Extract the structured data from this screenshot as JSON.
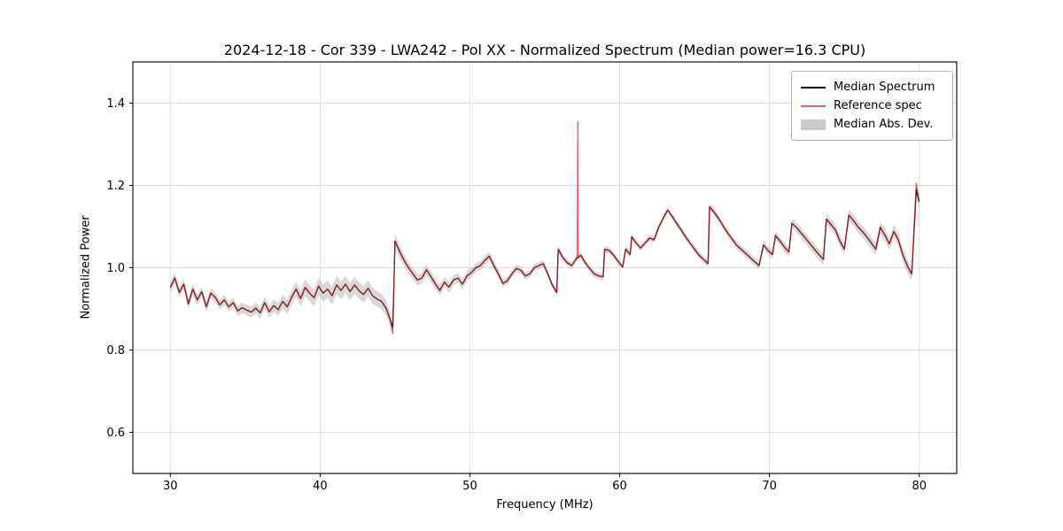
{
  "chart_data": {
    "type": "line",
    "title": "2024-12-18 - Cor 339 - LWA242 - Pol XX - Normalized Spectrum (Median power=16.3 CPU)",
    "xlabel": "Frequency (MHz)",
    "ylabel": "Normalized Power",
    "xlim": [
      27.5,
      82.5
    ],
    "ylim": [
      0.5,
      1.5
    ],
    "xticks": [
      30,
      40,
      50,
      60,
      70,
      80
    ],
    "yticks": [
      0.6,
      0.8,
      1.0,
      1.2,
      1.4
    ],
    "grid": true,
    "legend_position": "upper right",
    "colors": {
      "median": "#000000",
      "reference": "#d62728",
      "reference_opacity": 0.7,
      "band": "#aaaaaa",
      "band_opacity": 0.45,
      "grid": "#dddddd",
      "spine": "#000000"
    },
    "series": [
      {
        "name": "Median Spectrum",
        "color": "#000000",
        "points": [
          [
            30.0,
            0.952
          ],
          [
            30.3,
            0.975
          ],
          [
            30.6,
            0.94
          ],
          [
            30.9,
            0.96
          ],
          [
            31.2,
            0.912
          ],
          [
            31.5,
            0.948
          ],
          [
            31.8,
            0.922
          ],
          [
            32.1,
            0.942
          ],
          [
            32.4,
            0.905
          ],
          [
            32.7,
            0.938
          ],
          [
            33.0,
            0.928
          ],
          [
            33.3,
            0.91
          ],
          [
            33.6,
            0.922
          ],
          [
            33.9,
            0.905
          ],
          [
            34.2,
            0.915
          ],
          [
            34.5,
            0.895
          ],
          [
            34.8,
            0.903
          ],
          [
            35.1,
            0.897
          ],
          [
            35.4,
            0.892
          ],
          [
            35.7,
            0.902
          ],
          [
            36.0,
            0.89
          ],
          [
            36.3,
            0.915
          ],
          [
            36.6,
            0.893
          ],
          [
            36.9,
            0.908
          ],
          [
            37.2,
            0.898
          ],
          [
            37.5,
            0.918
          ],
          [
            37.8,
            0.905
          ],
          [
            38.1,
            0.928
          ],
          [
            38.4,
            0.948
          ],
          [
            38.7,
            0.925
          ],
          [
            39.0,
            0.952
          ],
          [
            39.3,
            0.938
          ],
          [
            39.6,
            0.927
          ],
          [
            39.9,
            0.955
          ],
          [
            40.2,
            0.938
          ],
          [
            40.5,
            0.948
          ],
          [
            40.8,
            0.932
          ],
          [
            41.1,
            0.958
          ],
          [
            41.4,
            0.945
          ],
          [
            41.7,
            0.96
          ],
          [
            42.0,
            0.942
          ],
          [
            42.3,
            0.958
          ],
          [
            42.6,
            0.944
          ],
          [
            42.9,
            0.935
          ],
          [
            43.2,
            0.95
          ],
          [
            43.5,
            0.932
          ],
          [
            43.8,
            0.924
          ],
          [
            44.1,
            0.918
          ],
          [
            44.4,
            0.902
          ],
          [
            44.7,
            0.872
          ],
          [
            44.85,
            0.855
          ],
          [
            45.0,
            1.065
          ],
          [
            45.3,
            1.04
          ],
          [
            45.6,
            1.018
          ],
          [
            45.9,
            1.0
          ],
          [
            46.2,
            0.985
          ],
          [
            46.5,
            0.97
          ],
          [
            46.8,
            0.975
          ],
          [
            47.1,
            0.995
          ],
          [
            47.4,
            0.978
          ],
          [
            47.7,
            0.96
          ],
          [
            48.0,
            0.945
          ],
          [
            48.3,
            0.965
          ],
          [
            48.6,
            0.953
          ],
          [
            48.9,
            0.97
          ],
          [
            49.2,
            0.975
          ],
          [
            49.5,
            0.96
          ],
          [
            49.8,
            0.98
          ],
          [
            50.1,
            0.988
          ],
          [
            50.4,
            1.0
          ],
          [
            50.7,
            1.005
          ],
          [
            51.0,
            1.018
          ],
          [
            51.3,
            1.028
          ],
          [
            51.6,
            1.005
          ],
          [
            51.9,
            0.985
          ],
          [
            52.2,
            0.962
          ],
          [
            52.5,
            0.968
          ],
          [
            52.8,
            0.985
          ],
          [
            53.1,
            0.998
          ],
          [
            53.4,
            0.994
          ],
          [
            53.7,
            0.98
          ],
          [
            54.0,
            0.985
          ],
          [
            54.3,
            1.0
          ],
          [
            54.6,
            1.005
          ],
          [
            54.9,
            1.01
          ],
          [
            55.2,
            0.985
          ],
          [
            55.5,
            0.958
          ],
          [
            55.8,
            0.94
          ],
          [
            55.9,
            1.045
          ],
          [
            56.2,
            1.025
          ],
          [
            56.5,
            1.012
          ],
          [
            56.8,
            1.005
          ],
          [
            57.1,
            1.022
          ],
          [
            57.4,
            1.03
          ],
          [
            57.7,
            1.012
          ],
          [
            58.0,
            0.998
          ],
          [
            58.3,
            0.985
          ],
          [
            58.6,
            0.98
          ],
          [
            58.9,
            0.978
          ],
          [
            59.0,
            1.045
          ],
          [
            59.3,
            1.042
          ],
          [
            59.6,
            1.03
          ],
          [
            59.9,
            1.015
          ],
          [
            60.2,
            1.002
          ],
          [
            60.4,
            1.045
          ],
          [
            60.7,
            1.032
          ],
          [
            60.8,
            1.075
          ],
          [
            61.1,
            1.06
          ],
          [
            61.4,
            1.048
          ],
          [
            61.7,
            1.06
          ],
          [
            62.0,
            1.072
          ],
          [
            62.3,
            1.068
          ],
          [
            62.6,
            1.098
          ],
          [
            62.9,
            1.12
          ],
          [
            63.2,
            1.14
          ],
          [
            63.5,
            1.125
          ],
          [
            63.8,
            1.108
          ],
          [
            64.1,
            1.092
          ],
          [
            64.4,
            1.075
          ],
          [
            64.7,
            1.06
          ],
          [
            65.0,
            1.045
          ],
          [
            65.3,
            1.03
          ],
          [
            65.6,
            1.02
          ],
          [
            65.9,
            1.01
          ],
          [
            66.0,
            1.148
          ],
          [
            66.3,
            1.135
          ],
          [
            66.6,
            1.12
          ],
          [
            66.9,
            1.102
          ],
          [
            67.2,
            1.085
          ],
          [
            67.5,
            1.07
          ],
          [
            67.8,
            1.055
          ],
          [
            68.1,
            1.045
          ],
          [
            68.4,
            1.035
          ],
          [
            68.7,
            1.025
          ],
          [
            69.0,
            1.015
          ],
          [
            69.3,
            1.005
          ],
          [
            69.6,
            1.055
          ],
          [
            69.9,
            1.042
          ],
          [
            70.2,
            1.032
          ],
          [
            70.4,
            1.078
          ],
          [
            70.7,
            1.065
          ],
          [
            71.0,
            1.05
          ],
          [
            71.3,
            1.038
          ],
          [
            71.5,
            1.108
          ],
          [
            71.8,
            1.098
          ],
          [
            72.1,
            1.085
          ],
          [
            72.4,
            1.072
          ],
          [
            72.7,
            1.058
          ],
          [
            73.0,
            1.045
          ],
          [
            73.3,
            1.032
          ],
          [
            73.6,
            1.02
          ],
          [
            73.8,
            1.118
          ],
          [
            74.1,
            1.105
          ],
          [
            74.4,
            1.092
          ],
          [
            74.7,
            1.065
          ],
          [
            75.0,
            1.045
          ],
          [
            75.3,
            1.128
          ],
          [
            75.6,
            1.115
          ],
          [
            75.9,
            1.1
          ],
          [
            76.2,
            1.088
          ],
          [
            76.5,
            1.075
          ],
          [
            76.8,
            1.06
          ],
          [
            77.1,
            1.045
          ],
          [
            77.4,
            1.098
          ],
          [
            77.7,
            1.08
          ],
          [
            78.0,
            1.058
          ],
          [
            78.3,
            1.088
          ],
          [
            78.6,
            1.068
          ],
          [
            78.9,
            1.032
          ],
          [
            79.2,
            1.005
          ],
          [
            79.5,
            0.985
          ],
          [
            79.8,
            1.19
          ],
          [
            80.0,
            1.16
          ]
        ]
      },
      {
        "name": "Reference spec",
        "color": "#d62728",
        "based_on": "Median Spectrum",
        "overrides": [
          [
            44.85,
            0.84
          ],
          [
            57.2,
            1.355
          ],
          [
            79.8,
            1.205
          ]
        ]
      },
      {
        "name": "Median Abs. Dev.",
        "type": "band",
        "color": "#aaaaaa",
        "halfwidth": [
          [
            30,
            0.013
          ],
          [
            34,
            0.012
          ],
          [
            37,
            0.015
          ],
          [
            39,
            0.02
          ],
          [
            41,
            0.022
          ],
          [
            43,
            0.02
          ],
          [
            44.8,
            0.018
          ],
          [
            45.5,
            0.015
          ],
          [
            47,
            0.013
          ],
          [
            50,
            0.012
          ],
          [
            53,
            0.009
          ],
          [
            56,
            0.008
          ],
          [
            60,
            0.008
          ],
          [
            64,
            0.008
          ],
          [
            67,
            0.009
          ],
          [
            70,
            0.01
          ],
          [
            72,
            0.012
          ],
          [
            75,
            0.014
          ],
          [
            78,
            0.015
          ],
          [
            80,
            0.018
          ]
        ]
      }
    ]
  },
  "legend": {
    "items": [
      {
        "label": "Median Spectrum",
        "swatch": "line",
        "color": "#000000"
      },
      {
        "label": "Reference spec",
        "swatch": "line",
        "color": "#e06060"
      },
      {
        "label": "Median Abs. Dev.",
        "swatch": "band",
        "color": "#c9c9c9"
      }
    ]
  }
}
